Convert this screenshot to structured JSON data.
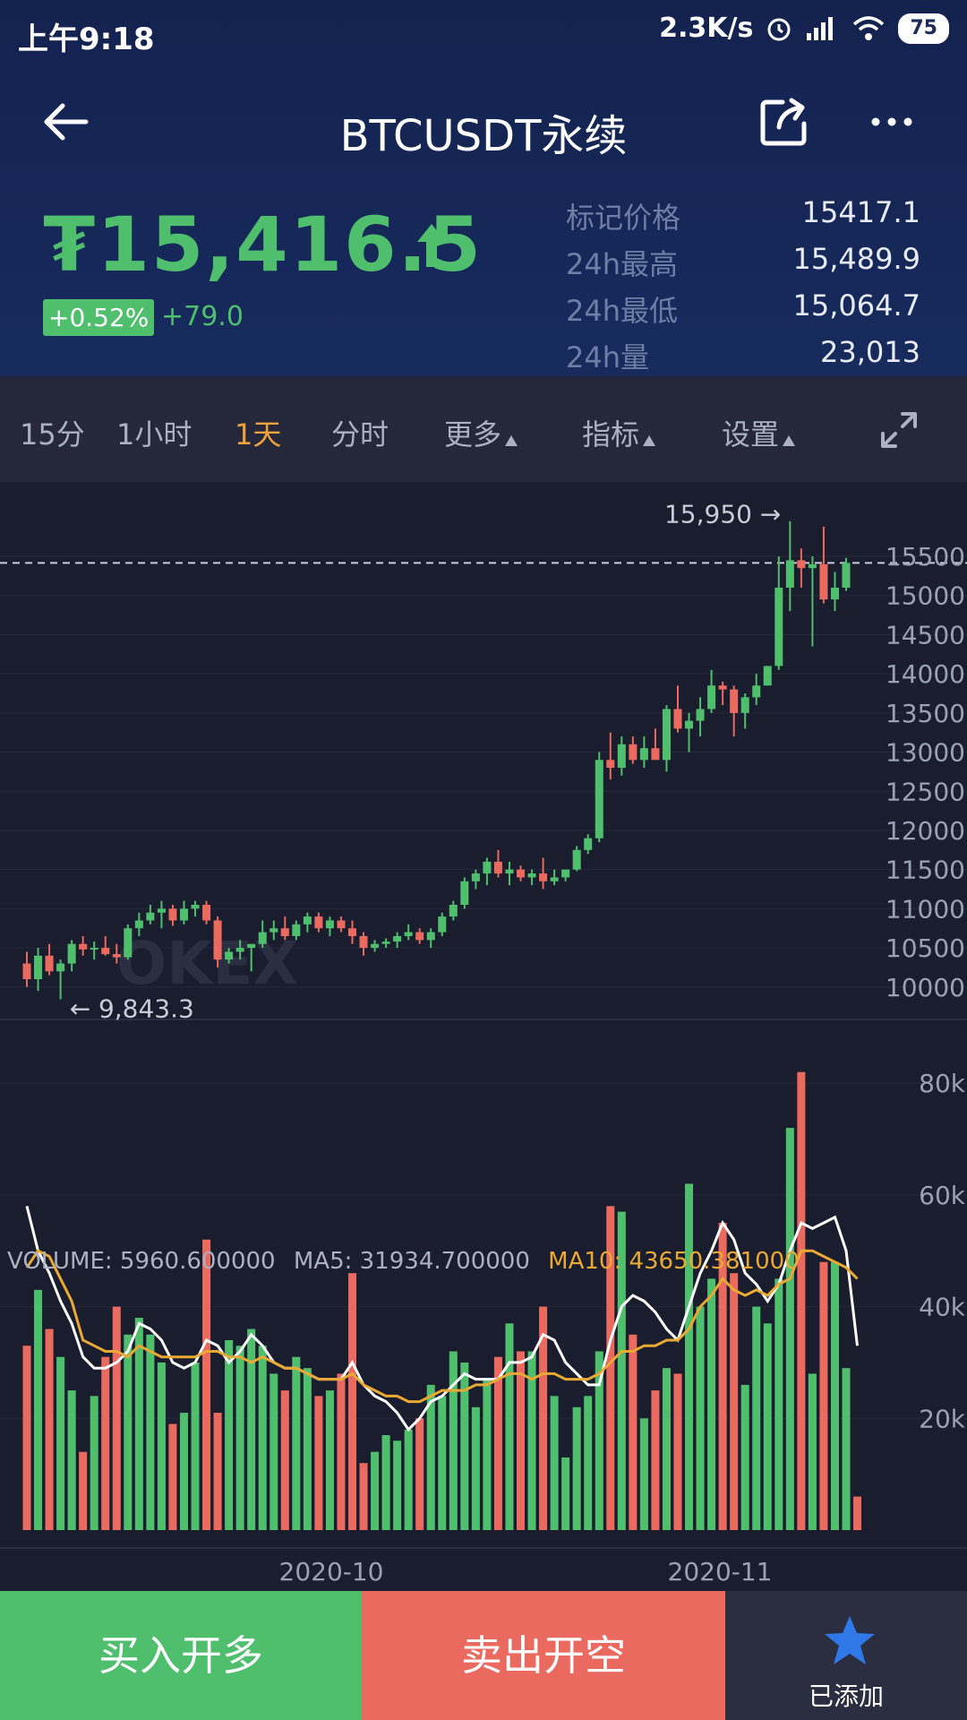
{
  "status": {
    "time": "上午9:18",
    "speed": "2.3K/s",
    "battery": "75"
  },
  "header": {
    "title": "BTCUSDT永续"
  },
  "ticker": {
    "price": "₮15,416.5",
    "change_pct": "+0.52%",
    "change_abs": "+79.0",
    "stats": [
      {
        "label": "标记价格",
        "value": "15417.1"
      },
      {
        "label": "24h最高",
        "value": "15,489.9"
      },
      {
        "label": "24h最低",
        "value": "15,064.7"
      },
      {
        "label": "24h量",
        "value": "23,013"
      }
    ]
  },
  "tabs": [
    {
      "label": "15分"
    },
    {
      "label": "1小时"
    },
    {
      "label": "1天",
      "active": true
    },
    {
      "label": "分时"
    },
    {
      "label": "更多"
    },
    {
      "label": "指标"
    },
    {
      "label": "设置"
    }
  ],
  "colors": {
    "up": "#4fbf6e",
    "down": "#ea6a5f",
    "ma5": "#ffffff",
    "ma10": "#e9a933",
    "accent": "#f0a23a"
  },
  "watermark": "OKEX",
  "chart_data": {
    "type": "candlestick",
    "price_axis_ticks": [
      "15500",
      "15000",
      "14500",
      "14000",
      "13500",
      "13000",
      "12500",
      "12000",
      "11500",
      "11000",
      "10500",
      "10000"
    ],
    "price_ylim": [
      9700,
      16450
    ],
    "high_label": "15,950",
    "low_label": "9,843.3",
    "current_price_line": 15416.5,
    "x_tick_labels": [
      "2020-10",
      "2020-11"
    ],
    "candles": [
      {
        "o": 10300,
        "h": 10450,
        "l": 10000,
        "c": 10100
      },
      {
        "o": 10100,
        "h": 10500,
        "l": 9950,
        "c": 10400
      },
      {
        "o": 10400,
        "h": 10550,
        "l": 10150,
        "c": 10200
      },
      {
        "o": 10200,
        "h": 10350,
        "l": 9843,
        "c": 10300
      },
      {
        "o": 10300,
        "h": 10600,
        "l": 10200,
        "c": 10550
      },
      {
        "o": 10550,
        "h": 10650,
        "l": 10400,
        "c": 10480
      },
      {
        "o": 10480,
        "h": 10580,
        "l": 10350,
        "c": 10500
      },
      {
        "o": 10500,
        "h": 10650,
        "l": 10400,
        "c": 10420
      },
      {
        "o": 10420,
        "h": 10550,
        "l": 10300,
        "c": 10380
      },
      {
        "o": 10380,
        "h": 10800,
        "l": 10350,
        "c": 10750
      },
      {
        "o": 10750,
        "h": 10950,
        "l": 10650,
        "c": 10850
      },
      {
        "o": 10850,
        "h": 11050,
        "l": 10800,
        "c": 10950
      },
      {
        "o": 10950,
        "h": 11100,
        "l": 10750,
        "c": 11000
      },
      {
        "o": 11000,
        "h": 11050,
        "l": 10780,
        "c": 10850
      },
      {
        "o": 10850,
        "h": 11100,
        "l": 10800,
        "c": 11000
      },
      {
        "o": 11000,
        "h": 11100,
        "l": 10900,
        "c": 11050
      },
      {
        "o": 11050,
        "h": 11100,
        "l": 10800,
        "c": 10850
      },
      {
        "o": 10850,
        "h": 10900,
        "l": 10250,
        "c": 10350
      },
      {
        "o": 10350,
        "h": 10500,
        "l": 10300,
        "c": 10450
      },
      {
        "o": 10450,
        "h": 10600,
        "l": 10350,
        "c": 10500
      },
      {
        "o": 10500,
        "h": 10550,
        "l": 10200,
        "c": 10550
      },
      {
        "o": 10550,
        "h": 10850,
        "l": 10500,
        "c": 10700
      },
      {
        "o": 10700,
        "h": 10850,
        "l": 10600,
        "c": 10750
      },
      {
        "o": 10750,
        "h": 10900,
        "l": 10600,
        "c": 10650
      },
      {
        "o": 10650,
        "h": 10850,
        "l": 10600,
        "c": 10800
      },
      {
        "o": 10800,
        "h": 10950,
        "l": 10700,
        "c": 10900
      },
      {
        "o": 10900,
        "h": 10950,
        "l": 10700,
        "c": 10750
      },
      {
        "o": 10750,
        "h": 10900,
        "l": 10650,
        "c": 10850
      },
      {
        "o": 10850,
        "h": 10900,
        "l": 10700,
        "c": 10750
      },
      {
        "o": 10750,
        "h": 10850,
        "l": 10550,
        "c": 10650
      },
      {
        "o": 10650,
        "h": 10700,
        "l": 10400,
        "c": 10500
      },
      {
        "o": 10500,
        "h": 10600,
        "l": 10450,
        "c": 10550
      },
      {
        "o": 10550,
        "h": 10620,
        "l": 10500,
        "c": 10580
      },
      {
        "o": 10580,
        "h": 10700,
        "l": 10500,
        "c": 10650
      },
      {
        "o": 10650,
        "h": 10800,
        "l": 10600,
        "c": 10700
      },
      {
        "o": 10700,
        "h": 10750,
        "l": 10550,
        "c": 10600
      },
      {
        "o": 10600,
        "h": 10750,
        "l": 10500,
        "c": 10700
      },
      {
        "o": 10700,
        "h": 10950,
        "l": 10650,
        "c": 10900
      },
      {
        "o": 10900,
        "h": 11100,
        "l": 10850,
        "c": 11050
      },
      {
        "o": 11050,
        "h": 11400,
        "l": 11000,
        "c": 11350
      },
      {
        "o": 11350,
        "h": 11500,
        "l": 11250,
        "c": 11450
      },
      {
        "o": 11450,
        "h": 11650,
        "l": 11300,
        "c": 11600
      },
      {
        "o": 11600,
        "h": 11750,
        "l": 11400,
        "c": 11450
      },
      {
        "o": 11450,
        "h": 11600,
        "l": 11300,
        "c": 11500
      },
      {
        "o": 11500,
        "h": 11550,
        "l": 11350,
        "c": 11400
      },
      {
        "o": 11400,
        "h": 11500,
        "l": 11300,
        "c": 11450
      },
      {
        "o": 11450,
        "h": 11650,
        "l": 11250,
        "c": 11350
      },
      {
        "o": 11350,
        "h": 11500,
        "l": 11300,
        "c": 11400
      },
      {
        "o": 11400,
        "h": 11500,
        "l": 11350,
        "c": 11500
      },
      {
        "o": 11500,
        "h": 11800,
        "l": 11480,
        "c": 11750
      },
      {
        "o": 11750,
        "h": 11950,
        "l": 11700,
        "c": 11900
      },
      {
        "o": 11900,
        "h": 13000,
        "l": 11850,
        "c": 12900
      },
      {
        "o": 12900,
        "h": 13250,
        "l": 12650,
        "c": 12800
      },
      {
        "o": 12800,
        "h": 13200,
        "l": 12700,
        "c": 13100
      },
      {
        "o": 13100,
        "h": 13200,
        "l": 12850,
        "c": 12900
      },
      {
        "o": 12900,
        "h": 13200,
        "l": 12800,
        "c": 13050
      },
      {
        "o": 13050,
        "h": 13300,
        "l": 12950,
        "c": 12900
      },
      {
        "o": 12900,
        "h": 13600,
        "l": 12750,
        "c": 13550
      },
      {
        "o": 13550,
        "h": 13850,
        "l": 13250,
        "c": 13300
      },
      {
        "o": 13300,
        "h": 13500,
        "l": 13000,
        "c": 13400
      },
      {
        "o": 13400,
        "h": 13700,
        "l": 13200,
        "c": 13550
      },
      {
        "o": 13550,
        "h": 14050,
        "l": 13500,
        "c": 13850
      },
      {
        "o": 13850,
        "h": 13900,
        "l": 13600,
        "c": 13800
      },
      {
        "o": 13800,
        "h": 13850,
        "l": 13200,
        "c": 13500
      },
      {
        "o": 13500,
        "h": 13750,
        "l": 13300,
        "c": 13700
      },
      {
        "o": 13700,
        "h": 14000,
        "l": 13600,
        "c": 13850
      },
      {
        "o": 13850,
        "h": 14100,
        "l": 13850,
        "c": 14100
      },
      {
        "o": 14100,
        "h": 15500,
        "l": 14050,
        "c": 15100
      },
      {
        "o": 15100,
        "h": 15950,
        "l": 14800,
        "c": 15450
      },
      {
        "o": 15450,
        "h": 15600,
        "l": 15100,
        "c": 15350
      },
      {
        "o": 15350,
        "h": 15500,
        "l": 14350,
        "c": 15400
      },
      {
        "o": 15400,
        "h": 15880,
        "l": 14900,
        "c": 14950
      },
      {
        "o": 14950,
        "h": 15300,
        "l": 14800,
        "c": 15100
      },
      {
        "o": 15100,
        "h": 15480,
        "l": 15060,
        "c": 15416
      }
    ],
    "volume": {
      "legend_volume": "VOLUME: 5960.600000",
      "legend_ma5": "MA5: 31934.700000",
      "legend_ma10": "MA10: 43650.381000",
      "axis_ticks": [
        "80k",
        "60k",
        "40k",
        "20k"
      ],
      "ylim": [
        0,
        85000
      ],
      "values": [
        33000,
        43000,
        36000,
        31000,
        25000,
        14000,
        24000,
        31000,
        40000,
        35000,
        38000,
        35000,
        30000,
        19000,
        21000,
        30000,
        52000,
        21000,
        34000,
        33000,
        36000,
        33000,
        28000,
        25000,
        31000,
        29000,
        24000,
        25000,
        28000,
        46000,
        12000,
        14000,
        17000,
        16000,
        18000,
        20000,
        26000,
        24000,
        32000,
        30000,
        22000,
        27000,
        31000,
        37000,
        32000,
        32000,
        40000,
        24000,
        13000,
        22000,
        24000,
        32000,
        58000,
        57000,
        35000,
        20000,
        25000,
        29000,
        28000,
        62000,
        40000,
        45000,
        55000,
        46000,
        26000,
        40000,
        37000,
        45000,
        72000,
        82000,
        28000,
        48000,
        48000,
        29000,
        6000
      ],
      "ma5": [
        58000,
        50000,
        46000,
        41000,
        37000,
        31000,
        29000,
        29000,
        30000,
        32000,
        37000,
        36000,
        34000,
        30000,
        29000,
        30000,
        34000,
        33000,
        30000,
        32000,
        35000,
        33000,
        30000,
        29000,
        29000,
        28000,
        27000,
        27000,
        27000,
        30000,
        26000,
        24000,
        23000,
        21000,
        18000,
        20000,
        23000,
        24000,
        26000,
        28000,
        27000,
        27000,
        27000,
        30000,
        30000,
        31000,
        35000,
        34000,
        30000,
        28000,
        26000,
        26000,
        34000,
        40000,
        42000,
        41000,
        39000,
        36000,
        34000,
        40000,
        46000,
        50000,
        55000,
        52000,
        46000,
        44000,
        41000,
        44000,
        50000,
        55000,
        54000,
        55000,
        56000,
        50000,
        33000
      ],
      "ma10": [
        47000,
        50000,
        49000,
        45000,
        41000,
        34000,
        33000,
        32000,
        32000,
        31000,
        33000,
        32000,
        31000,
        31000,
        31000,
        31000,
        32000,
        32000,
        31000,
        31000,
        30000,
        31000,
        30000,
        29000,
        29000,
        28000,
        27000,
        27000,
        27000,
        28000,
        26000,
        25000,
        24000,
        24000,
        23000,
        23000,
        24000,
        25000,
        25000,
        25000,
        26000,
        26000,
        27000,
        28000,
        28000,
        27000,
        28000,
        28000,
        27000,
        27000,
        27000,
        28000,
        30000,
        32000,
        32000,
        33000,
        33000,
        34000,
        34000,
        36000,
        40000,
        42000,
        45000,
        43000,
        42000,
        43000,
        42000,
        44000,
        45000,
        50000,
        50000,
        49000,
        48000,
        47000,
        45000
      ]
    }
  },
  "actions": {
    "buy": "买入开多",
    "sell": "卖出开空",
    "fav": "已添加"
  }
}
